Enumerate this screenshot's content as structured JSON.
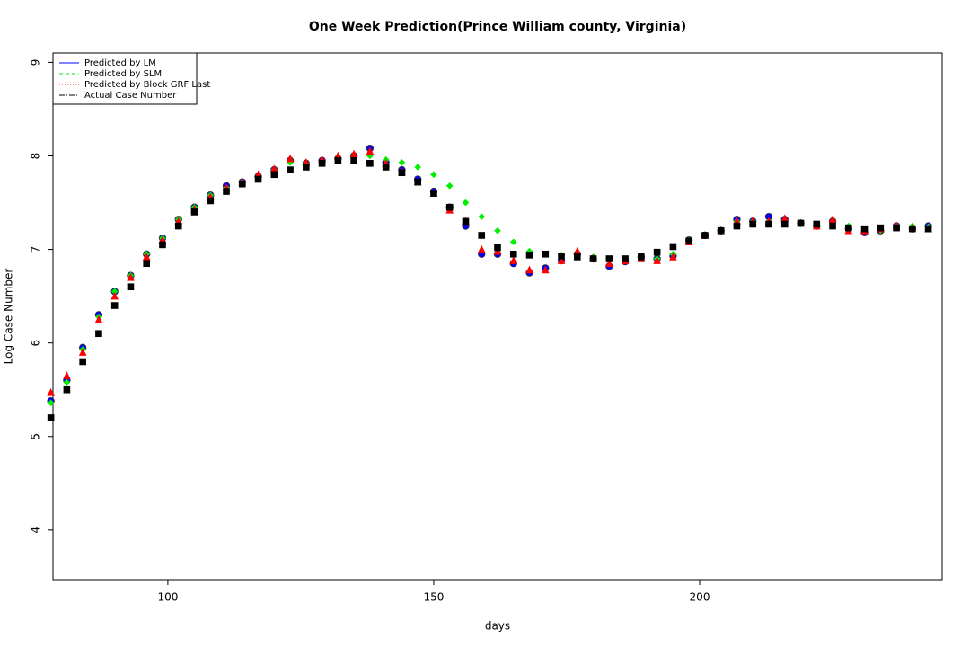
{
  "chart_data": {
    "type": "scatter",
    "title": "One Week Prediction(Prince William county, Virginia)",
    "x_label": "days",
    "y_label": "Log Case Number",
    "xlim": [
      78.4,
      245.6
    ],
    "ylim": [
      3.47,
      9.1
    ],
    "xticks": [
      100,
      150,
      200
    ],
    "yticks": [
      4,
      5,
      6,
      7,
      8,
      9
    ],
    "legend_position": "top-left",
    "x": [
      78,
      81,
      84,
      87,
      90,
      93,
      96,
      99,
      102,
      105,
      108,
      111,
      114,
      117,
      120,
      123,
      126,
      129,
      132,
      135,
      138,
      141,
      144,
      147,
      150,
      153,
      156,
      159,
      162,
      165,
      168,
      171,
      174,
      177,
      180,
      183,
      186,
      189,
      192,
      195,
      198,
      201,
      204,
      207,
      210,
      213,
      216,
      219,
      222,
      225,
      228,
      231,
      234,
      237,
      240,
      243
    ],
    "series": [
      {
        "name": "Predicted by LM",
        "color": "#0000ff",
        "marker": "circle",
        "line_style": "solid",
        "values": [
          5.38,
          5.6,
          5.95,
          6.3,
          6.55,
          6.72,
          6.95,
          7.12,
          7.32,
          7.45,
          7.58,
          7.68,
          7.72,
          7.78,
          7.85,
          7.95,
          7.92,
          7.95,
          7.97,
          8.0,
          8.08,
          7.93,
          7.85,
          7.75,
          7.62,
          7.45,
          7.25,
          6.95,
          6.95,
          6.85,
          6.75,
          6.8,
          6.88,
          6.95,
          6.9,
          6.82,
          6.87,
          6.92,
          6.9,
          6.93,
          7.1,
          7.15,
          7.2,
          7.32,
          7.3,
          7.35,
          7.32,
          7.28,
          7.25,
          7.3,
          7.22,
          7.18,
          7.2,
          7.25,
          7.22,
          7.25
        ]
      },
      {
        "name": "Predicted by SLM",
        "color": "#00ee00",
        "marker": "diamond",
        "line_style": "dashed",
        "values": [
          5.36,
          5.58,
          5.93,
          6.28,
          6.55,
          6.72,
          6.95,
          7.12,
          7.32,
          7.45,
          7.58,
          7.66,
          7.72,
          7.78,
          7.85,
          7.93,
          7.92,
          7.94,
          7.96,
          7.98,
          8.0,
          7.96,
          7.93,
          7.88,
          7.8,
          7.68,
          7.5,
          7.35,
          7.2,
          7.08,
          6.98,
          6.95,
          6.94,
          6.93,
          6.92,
          6.9,
          6.9,
          6.92,
          6.9,
          6.95,
          7.1,
          7.15,
          7.2,
          7.3,
          7.3,
          7.3,
          7.3,
          7.27,
          7.25,
          7.27,
          7.25,
          7.22,
          7.2,
          7.25,
          7.25,
          7.24
        ]
      },
      {
        "name": "Predicted by Block GRF Last",
        "color": "#ff0000",
        "marker": "triangle",
        "line_style": "dotted",
        "values": [
          5.47,
          5.65,
          5.9,
          6.25,
          6.5,
          6.7,
          6.92,
          7.1,
          7.3,
          7.43,
          7.56,
          7.66,
          7.72,
          7.8,
          7.86,
          7.97,
          7.93,
          7.96,
          8.0,
          8.02,
          8.05,
          7.92,
          7.83,
          7.72,
          7.6,
          7.42,
          7.3,
          7.0,
          6.98,
          6.88,
          6.78,
          6.78,
          6.88,
          6.98,
          6.9,
          6.85,
          6.88,
          6.9,
          6.88,
          6.92,
          7.08,
          7.15,
          7.2,
          7.3,
          7.3,
          7.3,
          7.33,
          7.28,
          7.25,
          7.32,
          7.2,
          7.2,
          7.22,
          7.25,
          7.23,
          7.22
        ]
      },
      {
        "name": "Actual Case Number",
        "color": "#000000",
        "marker": "square",
        "line_style": "dashdot",
        "values": [
          5.2,
          5.5,
          5.8,
          6.1,
          6.4,
          6.6,
          6.85,
          7.05,
          7.25,
          7.4,
          7.52,
          7.62,
          7.7,
          7.75,
          7.8,
          7.85,
          7.88,
          7.92,
          7.95,
          7.95,
          7.92,
          7.88,
          7.82,
          7.72,
          7.6,
          7.45,
          7.3,
          7.15,
          7.02,
          6.95,
          6.94,
          6.95,
          6.93,
          6.92,
          6.9,
          6.9,
          6.9,
          6.92,
          6.97,
          7.03,
          7.09,
          7.15,
          7.2,
          7.25,
          7.27,
          7.27,
          7.27,
          7.28,
          7.27,
          7.25,
          7.23,
          7.22,
          7.23,
          7.23,
          7.22,
          7.22
        ]
      }
    ]
  }
}
